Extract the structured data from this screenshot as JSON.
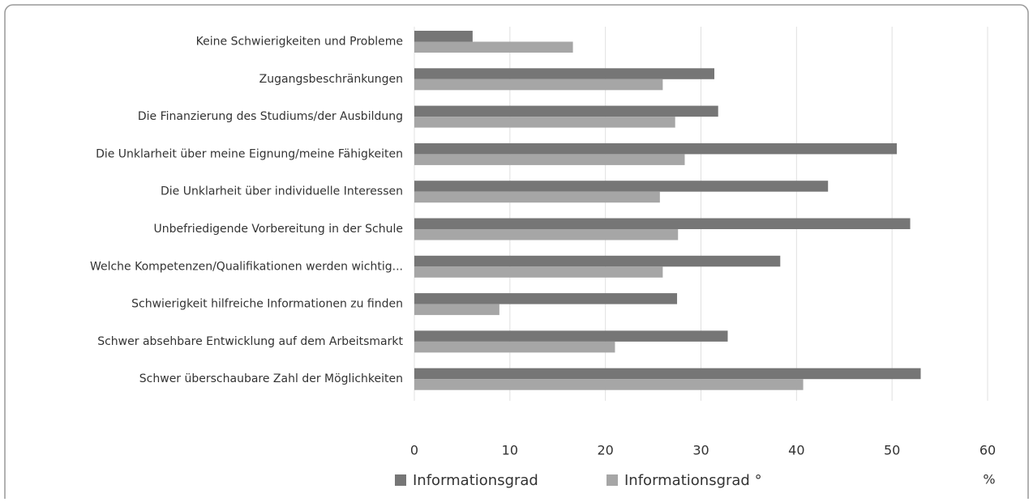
{
  "chart_data": {
    "type": "hbar",
    "categories": [
      "Keine Schwierigkeiten und Probleme",
      "Zugangsbeschränkungen",
      "Die Finanzierung des Studiums/der Ausbildung",
      "Die Unklarheit über meine Eignung/meine Fähigkeiten",
      "Die Unklarheit über individuelle Interessen",
      "Unbefriedigende Vorbereitung in der Schule",
      "Welche Kompetenzen/Qualifikationen werden wichtig...",
      "Schwierigkeit hilfreiche Informationen zu finden",
      "Schwer absehbare Entwicklung auf dem Arbeitsmarkt",
      "Schwer überschaubare Zahl der Möglichkeiten"
    ],
    "series": [
      {
        "name": "Informationsgrad",
        "color": "#767676",
        "values": [
          6.1,
          31.4,
          31.8,
          50.5,
          43.3,
          51.9,
          38.3,
          27.5,
          32.8,
          53.0
        ]
      },
      {
        "name": "Informationsgrad °",
        "color": "#a6a6a6",
        "values": [
          16.6,
          26.0,
          27.3,
          28.3,
          25.7,
          27.6,
          26.0,
          8.9,
          21.0,
          40.7
        ]
      }
    ],
    "xlim": [
      0,
      60
    ],
    "xticks": [
      0,
      10,
      20,
      30,
      40,
      50,
      60
    ],
    "x_label": "%",
    "grid": true
  }
}
